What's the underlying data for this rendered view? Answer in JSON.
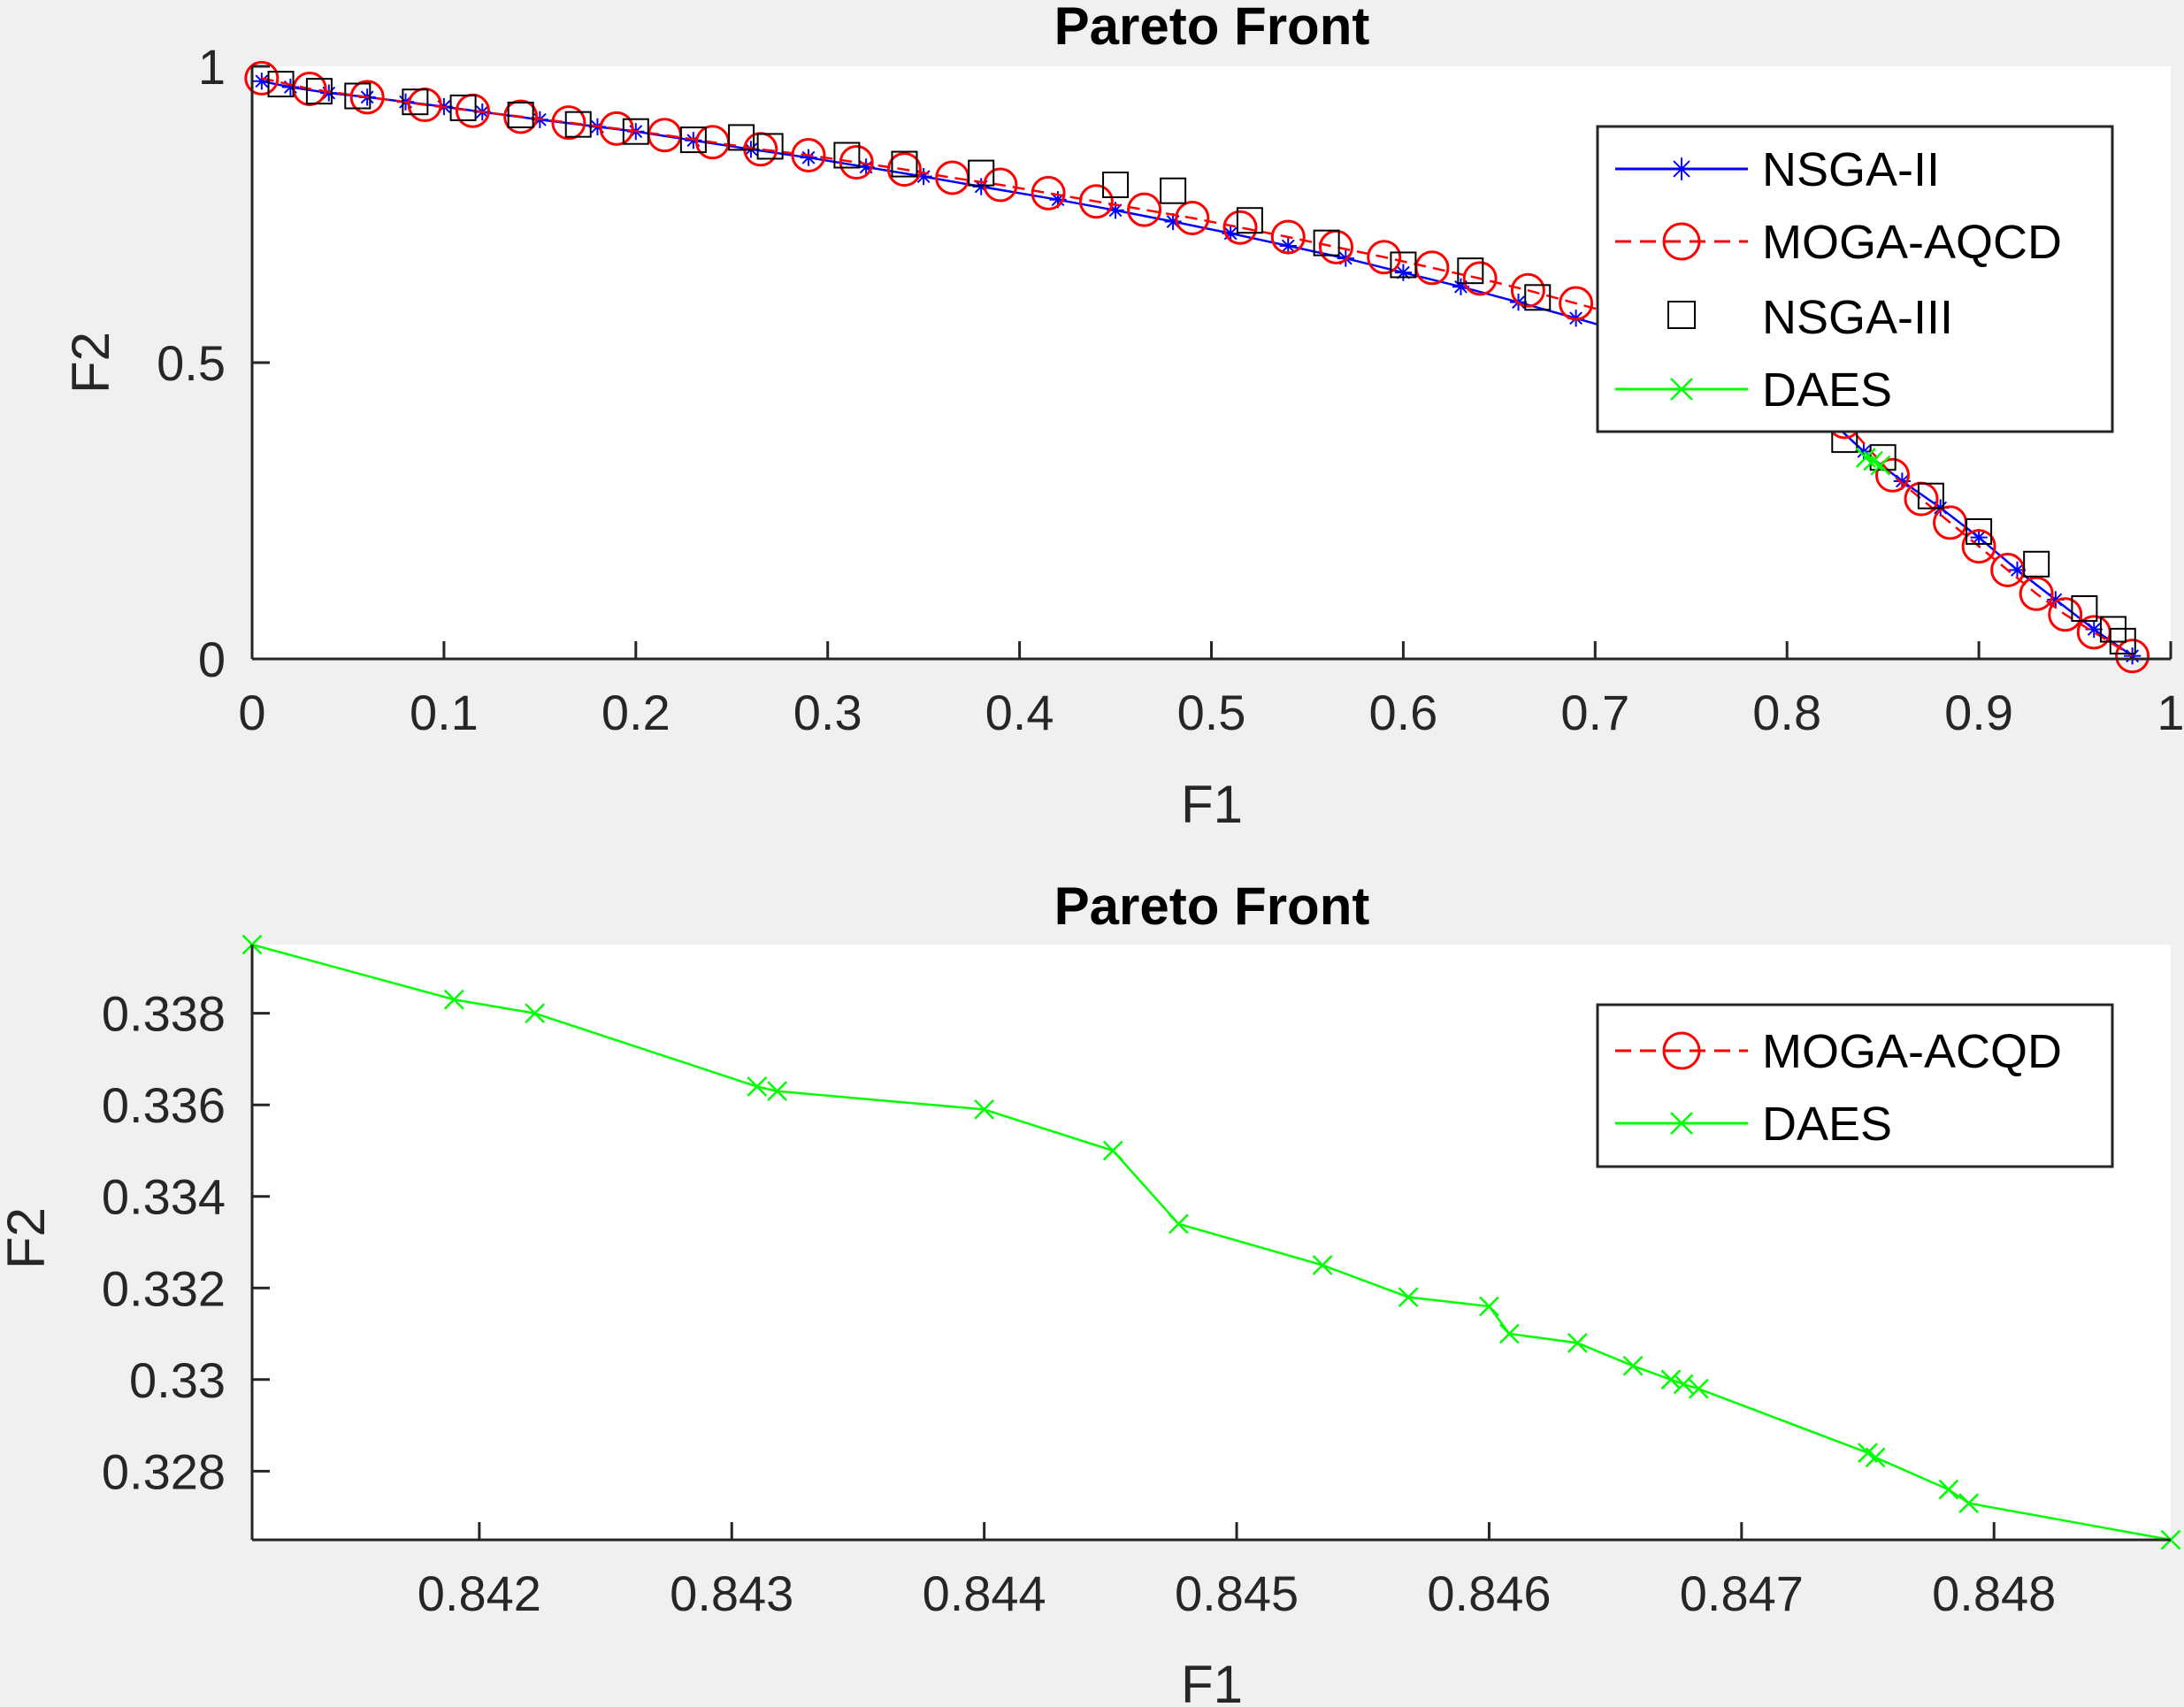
{
  "chart_data": [
    {
      "type": "line",
      "title": "Pareto Front",
      "xlabel": "F1",
      "ylabel": "F2",
      "xlim": [
        0,
        1
      ],
      "ylim": [
        0,
        1
      ],
      "xticks": [
        "0",
        "0.1",
        "0.2",
        "0.3",
        "0.4",
        "0.5",
        "0.6",
        "0.7",
        "0.8",
        "0.9",
        "1"
      ],
      "xtick_values": [
        0,
        0.1,
        0.2,
        0.3,
        0.4,
        0.5,
        0.6,
        0.7,
        0.8,
        0.9,
        1
      ],
      "yticks": [
        "0",
        "0.5",
        "1"
      ],
      "ytick_values": [
        0,
        0.5,
        1
      ],
      "grid": false,
      "legend_position": "top-right",
      "series": [
        {
          "name": "NSGA-II",
          "color": "#0000ff",
          "marker": "asterisk",
          "line": "solid",
          "x": [
            0.005,
            0.02,
            0.04,
            0.06,
            0.08,
            0.1,
            0.12,
            0.15,
            0.18,
            0.2,
            0.23,
            0.26,
            0.29,
            0.32,
            0.35,
            0.38,
            0.42,
            0.45,
            0.48,
            0.51,
            0.54,
            0.57,
            0.6,
            0.63,
            0.66,
            0.69,
            0.72,
            0.75,
            0.78,
            0.8,
            0.82,
            0.84,
            0.86,
            0.88,
            0.9,
            0.92,
            0.94,
            0.96,
            0.98
          ],
          "y": [
            0.975,
            0.965,
            0.955,
            0.948,
            0.94,
            0.932,
            0.923,
            0.91,
            0.898,
            0.89,
            0.875,
            0.86,
            0.846,
            0.83,
            0.814,
            0.797,
            0.775,
            0.757,
            0.738,
            0.718,
            0.697,
            0.676,
            0.652,
            0.628,
            0.602,
            0.575,
            0.547,
            0.515,
            0.478,
            0.448,
            0.41,
            0.35,
            0.3,
            0.255,
            0.205,
            0.15,
            0.1,
            0.05,
            0.005
          ]
        },
        {
          "name": "MOGA-AQCD",
          "color": "#ff0000",
          "marker": "circle",
          "line": "dashed",
          "x": [
            0.005,
            0.03,
            0.06,
            0.09,
            0.115,
            0.14,
            0.165,
            0.19,
            0.215,
            0.24,
            0.265,
            0.29,
            0.315,
            0.34,
            0.365,
            0.39,
            0.415,
            0.44,
            0.465,
            0.49,
            0.515,
            0.54,
            0.565,
            0.59,
            0.615,
            0.64,
            0.665,
            0.69,
            0.715,
            0.74,
            0.765,
            0.79,
            0.81,
            0.83,
            0.855,
            0.87,
            0.885,
            0.9,
            0.915,
            0.93,
            0.945,
            0.96,
            0.98
          ],
          "y": [
            0.98,
            0.962,
            0.948,
            0.935,
            0.925,
            0.915,
            0.905,
            0.895,
            0.884,
            0.872,
            0.86,
            0.85,
            0.838,
            0.826,
            0.812,
            0.8,
            0.786,
            0.772,
            0.758,
            0.744,
            0.728,
            0.712,
            0.695,
            0.678,
            0.66,
            0.642,
            0.622,
            0.6,
            0.578,
            0.555,
            0.53,
            0.505,
            0.48,
            0.4,
            0.31,
            0.27,
            0.23,
            0.19,
            0.15,
            0.11,
            0.075,
            0.045,
            0.005
          ]
        },
        {
          "name": "NSGA-III",
          "color": "#000000",
          "marker": "square",
          "line": "none",
          "x": [
            0.015,
            0.035,
            0.055,
            0.085,
            0.11,
            0.14,
            0.17,
            0.2,
            0.23,
            0.255,
            0.27,
            0.31,
            0.34,
            0.38,
            0.45,
            0.48,
            0.52,
            0.56,
            0.6,
            0.635,
            0.67,
            0.71,
            0.75,
            0.79,
            0.83,
            0.85,
            0.875,
            0.9,
            0.93,
            0.955,
            0.97,
            0.975
          ],
          "y": [
            0.97,
            0.958,
            0.95,
            0.94,
            0.93,
            0.918,
            0.902,
            0.89,
            0.876,
            0.88,
            0.865,
            0.85,
            0.835,
            0.82,
            0.8,
            0.79,
            0.74,
            0.702,
            0.665,
            0.655,
            0.61,
            0.565,
            0.52,
            0.47,
            0.37,
            0.34,
            0.275,
            0.215,
            0.16,
            0.085,
            0.05,
            0.03
          ]
        },
        {
          "name": "DAES",
          "color": "#00ff00",
          "marker": "x",
          "line": "solid",
          "x": [
            0.8411,
            0.8449,
            0.8487
          ],
          "y": [
            0.3395,
            0.3342,
            0.3265
          ]
        }
      ]
    },
    {
      "type": "line",
      "title": "Pareto Front",
      "xlabel": "F1",
      "ylabel": "F2",
      "xlim": [
        0.8411,
        0.8487
      ],
      "ylim": [
        0.3265,
        0.3395
      ],
      "xticks": [
        "0.842",
        "0.843",
        "0.844",
        "0.845",
        "0.846",
        "0.847",
        "0.848"
      ],
      "xtick_values": [
        0.842,
        0.843,
        0.844,
        0.845,
        0.846,
        0.847,
        0.848
      ],
      "yticks": [
        "0.328",
        "0.33",
        "0.332",
        "0.334",
        "0.336",
        "0.338"
      ],
      "ytick_values": [
        0.328,
        0.33,
        0.332,
        0.334,
        0.336,
        0.338
      ],
      "grid": false,
      "legend_position": "top-right",
      "series": [
        {
          "name": "MOGA-ACQD",
          "color": "#ff0000",
          "marker": "circle",
          "line": "dashed",
          "x": [],
          "y": []
        },
        {
          "name": "DAES",
          "color": "#00ff00",
          "marker": "x",
          "line": "solid",
          "x": [
            0.8411,
            0.8419,
            0.84222,
            0.8431,
            0.84318,
            0.844,
            0.84451,
            0.84477,
            0.84534,
            0.84568,
            0.846,
            0.84608,
            0.84635,
            0.84657,
            0.84672,
            0.84677,
            0.84683,
            0.8475,
            0.84753,
            0.84782,
            0.8479,
            0.8487
          ],
          "y": [
            0.3395,
            0.3383,
            0.338,
            0.3364,
            0.3363,
            0.3359,
            0.335,
            0.3334,
            0.3325,
            0.3318,
            0.3316,
            0.331,
            0.3308,
            0.3303,
            0.33,
            0.3299,
            0.3298,
            0.3284,
            0.3283,
            0.3276,
            0.3273,
            0.3265
          ]
        }
      ]
    }
  ]
}
